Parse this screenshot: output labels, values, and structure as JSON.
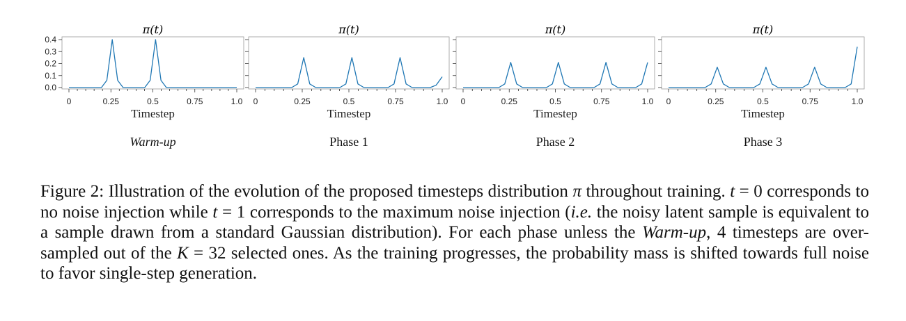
{
  "chart_data": [
    {
      "type": "line",
      "title": "π(t)",
      "xlabel": "Timestep",
      "subtitle": "Warm-up",
      "ylim": [
        0,
        0.4
      ],
      "yticks": [
        "0.0",
        "0.1",
        "0.2",
        "0.3",
        "0.4"
      ],
      "xticks": [
        "0",
        "0.25",
        "0.5",
        "0.75",
        "1.0"
      ],
      "grid": false,
      "series": [
        {
          "color": "#1f77b4",
          "x": [
            0,
            0.0323,
            0.0645,
            0.0968,
            0.129,
            0.1613,
            0.1935,
            0.2258,
            0.2581,
            0.2903,
            0.3226,
            0.3548,
            0.3871,
            0.4194,
            0.4516,
            0.4839,
            0.5161,
            0.5484,
            0.5806,
            0.6129,
            0.6452,
            0.6774,
            0.7097,
            0.7419,
            0.7742,
            0.8065,
            0.8387,
            0.871,
            0.9032,
            0.9355,
            0.9677,
            1.0
          ],
          "y": [
            0,
            0,
            0,
            0,
            0,
            0,
            0,
            0.06,
            0.4,
            0.06,
            0,
            0,
            0,
            0,
            0,
            0.06,
            0.4,
            0.06,
            0,
            0,
            0,
            0,
            0,
            0,
            0,
            0,
            0,
            0,
            0,
            0,
            0,
            0
          ]
        }
      ]
    },
    {
      "type": "line",
      "title": "π(t)",
      "xlabel": "Timestep",
      "subtitle": "Phase 1",
      "xticks": [
        "0",
        "0.25",
        "0.5",
        "0.75",
        "1.0"
      ],
      "ylim": [
        0,
        0.4
      ],
      "grid": false,
      "series": [
        {
          "color": "#1f77b4",
          "x": [
            0,
            0.0323,
            0.0645,
            0.0968,
            0.129,
            0.1613,
            0.1935,
            0.2258,
            0.2581,
            0.2903,
            0.3226,
            0.3548,
            0.3871,
            0.4194,
            0.4516,
            0.4839,
            0.5161,
            0.5484,
            0.5806,
            0.6129,
            0.6452,
            0.6774,
            0.7097,
            0.7419,
            0.7742,
            0.8065,
            0.8387,
            0.871,
            0.9032,
            0.9355,
            0.9677,
            1.0
          ],
          "y": [
            0,
            0,
            0,
            0,
            0,
            0,
            0,
            0.03,
            0.25,
            0.03,
            0,
            0,
            0,
            0,
            0,
            0.03,
            0.25,
            0.03,
            0,
            0,
            0,
            0,
            0,
            0.03,
            0.25,
            0.03,
            0,
            0,
            0,
            0,
            0.02,
            0.09
          ]
        }
      ]
    },
    {
      "type": "line",
      "title": "π(t)",
      "xlabel": "Timestep",
      "subtitle": "Phase 2",
      "xticks": [
        "0",
        "0.25",
        "0.5",
        "0.75",
        "1.0"
      ],
      "ylim": [
        0,
        0.4
      ],
      "grid": false,
      "series": [
        {
          "color": "#1f77b4",
          "x": [
            0,
            0.0323,
            0.0645,
            0.0968,
            0.129,
            0.1613,
            0.1935,
            0.2258,
            0.2581,
            0.2903,
            0.3226,
            0.3548,
            0.3871,
            0.4194,
            0.4516,
            0.4839,
            0.5161,
            0.5484,
            0.5806,
            0.6129,
            0.6452,
            0.6774,
            0.7097,
            0.7419,
            0.7742,
            0.8065,
            0.8387,
            0.871,
            0.9032,
            0.9355,
            0.9677,
            1.0
          ],
          "y": [
            0,
            0,
            0,
            0,
            0,
            0,
            0,
            0.03,
            0.21,
            0.03,
            0,
            0,
            0,
            0,
            0,
            0.03,
            0.21,
            0.03,
            0,
            0,
            0,
            0,
            0,
            0.03,
            0.21,
            0.03,
            0,
            0,
            0,
            0,
            0.03,
            0.21
          ]
        }
      ]
    },
    {
      "type": "line",
      "title": "π(t)",
      "xlabel": "Timestep",
      "subtitle": "Phase 3",
      "xticks": [
        "0",
        "0.25",
        "0.5",
        "0.75",
        "1.0"
      ],
      "ylim": [
        0,
        0.4
      ],
      "grid": false,
      "series": [
        {
          "color": "#1f77b4",
          "x": [
            0,
            0.0323,
            0.0645,
            0.0968,
            0.129,
            0.1613,
            0.1935,
            0.2258,
            0.2581,
            0.2903,
            0.3226,
            0.3548,
            0.3871,
            0.4194,
            0.4516,
            0.4839,
            0.5161,
            0.5484,
            0.5806,
            0.6129,
            0.6452,
            0.6774,
            0.7097,
            0.7419,
            0.7742,
            0.8065,
            0.8387,
            0.871,
            0.9032,
            0.9355,
            0.9677,
            1.0
          ],
          "y": [
            0,
            0,
            0,
            0,
            0,
            0,
            0,
            0.03,
            0.17,
            0.03,
            0,
            0,
            0,
            0,
            0,
            0.03,
            0.17,
            0.03,
            0,
            0,
            0,
            0,
            0,
            0.03,
            0.17,
            0.03,
            0,
            0,
            0,
            0,
            0.03,
            0.34
          ]
        }
      ]
    }
  ],
  "caption": {
    "s1": "Figure 2: Illustration of the evolution of the proposed timesteps distribution ",
    "m1": "π",
    "s2": " throughout training. ",
    "m2": "t",
    "s3": " = 0 corresponds to no noise injection while ",
    "m3": "t",
    "s4": " = 1 corresponds to the maximum noise injection (",
    "ie": "i.e.",
    "s5": " the noisy latent sample is equivalent to a sample drawn from a standard Gaussian distribution). For each phase unless the ",
    "warm": "Warm-up",
    "s6": ", 4 timesteps are over-sampled out of the ",
    "m4": "K",
    "s7": " = 32 selected ones. As the training progresses, the probability mass is shifted towards full noise to favor single-step generation."
  }
}
